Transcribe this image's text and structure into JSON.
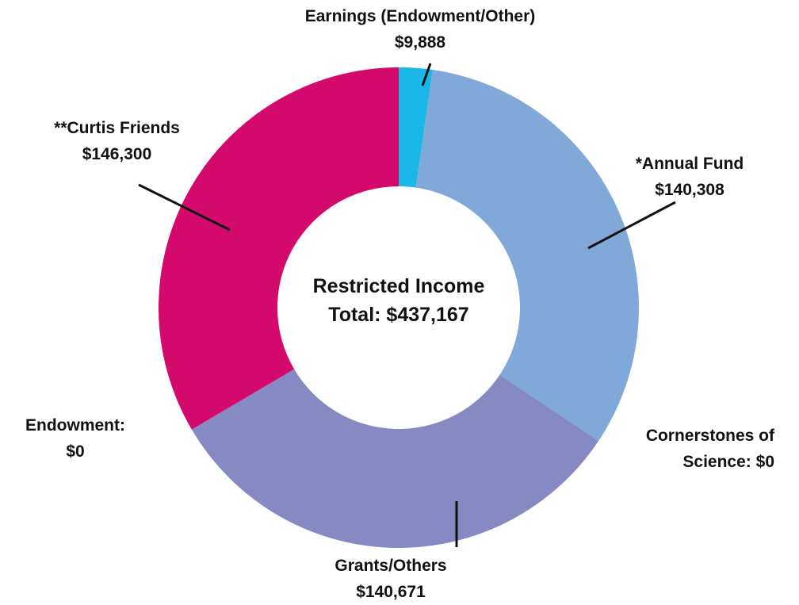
{
  "chart_data": {
    "type": "donut",
    "center_label": "Restricted Income",
    "total_label": "Total: $437,167",
    "categories": [
      "Earnings (Endowment/Other)",
      "*Annual Fund",
      "Cornerstones of Science:",
      "Grants/Others",
      "Endowment:",
      "**Curtis Friends"
    ],
    "values": [
      9888,
      140308,
      0,
      140671,
      0,
      146300
    ],
    "value_labels": [
      "$9,888",
      "$140,308",
      "$0",
      "$140,671",
      "$0",
      "$146,300"
    ],
    "colors": [
      "#1ab8e8",
      "#80a8d9",
      "#8494cc",
      "#8689c2",
      "#c93f8a",
      "#d30a6c"
    ]
  }
}
